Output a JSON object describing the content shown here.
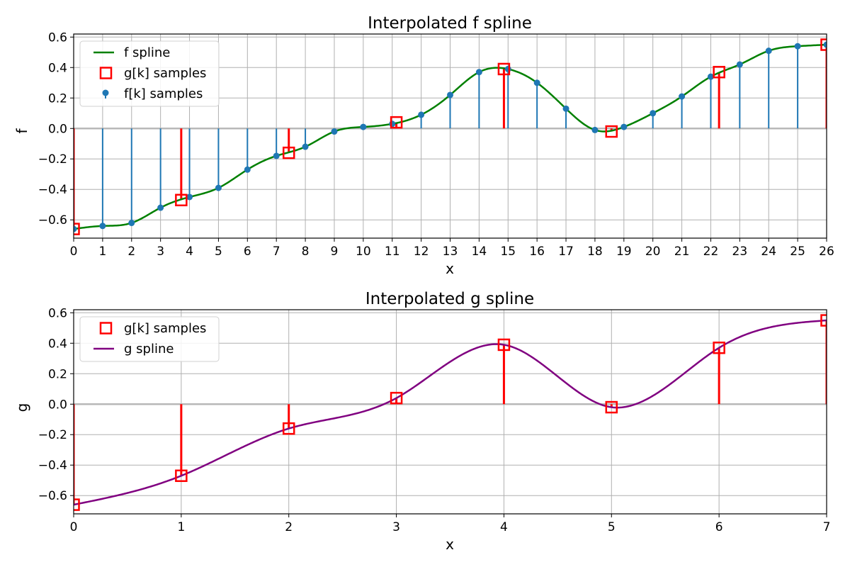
{
  "chart_data": [
    {
      "type": "line",
      "title": "Interpolated f spline",
      "xlabel": "x",
      "ylabel": "f",
      "xlim": [
        0,
        26
      ],
      "ylim": [
        -0.72,
        0.62
      ],
      "xticks": [
        "0",
        "1",
        "2",
        "3",
        "4",
        "5",
        "6",
        "7",
        "8",
        "9",
        "10",
        "11",
        "12",
        "13",
        "14",
        "15",
        "16",
        "17",
        "18",
        "19",
        "20",
        "21",
        "22",
        "23",
        "24",
        "25",
        "26"
      ],
      "yticks": [
        "−0.6",
        "−0.4",
        "−0.2",
        "0.0",
        "0.2",
        "0.4",
        "0.6"
      ],
      "ytick_values": [
        -0.6,
        -0.4,
        -0.2,
        0.0,
        0.2,
        0.4,
        0.6
      ],
      "grid": true,
      "legend_position": "upper left",
      "legend": [
        "f spline",
        "g[k] samples",
        "f[k] samples"
      ],
      "series": [
        {
          "name": "f spline",
          "kind": "line",
          "color": "#008000",
          "x": [
            0,
            1,
            2,
            3,
            4,
            5,
            6,
            7,
            8,
            9,
            10,
            11,
            12,
            13,
            14,
            15,
            16,
            17,
            18,
            19,
            20,
            21,
            22,
            23,
            24,
            25,
            26
          ],
          "values": [
            -0.66,
            -0.64,
            -0.62,
            -0.52,
            -0.45,
            -0.39,
            -0.27,
            -0.18,
            -0.12,
            -0.02,
            0.01,
            0.03,
            0.09,
            0.22,
            0.37,
            0.39,
            0.3,
            0.13,
            -0.01,
            0.01,
            0.1,
            0.21,
            0.34,
            0.42,
            0.51,
            0.54,
            0.55
          ]
        },
        {
          "name": "g[k] samples",
          "kind": "stem-square",
          "color": "#ff0000",
          "x": [
            0,
            3.714,
            7.429,
            11.143,
            14.857,
            18.571,
            22.286,
            26
          ],
          "values": [
            -0.66,
            -0.47,
            -0.16,
            0.04,
            0.39,
            -0.02,
            0.37,
            0.55
          ]
        },
        {
          "name": "f[k] samples",
          "kind": "stem-dot",
          "color": "#1f77b4",
          "x": [
            0,
            1,
            2,
            3,
            4,
            5,
            6,
            7,
            8,
            9,
            10,
            11,
            12,
            13,
            14,
            15,
            16,
            17,
            18,
            19,
            20,
            21,
            22,
            23,
            24,
            25,
            26
          ],
          "values": [
            -0.66,
            -0.64,
            -0.62,
            -0.52,
            -0.45,
            -0.39,
            -0.27,
            -0.18,
            -0.12,
            -0.02,
            0.01,
            0.03,
            0.09,
            0.22,
            0.37,
            0.39,
            0.3,
            0.13,
            -0.01,
            0.01,
            0.1,
            0.21,
            0.34,
            0.42,
            0.51,
            0.54,
            0.55
          ]
        }
      ]
    },
    {
      "type": "line",
      "title": "Interpolated g spline",
      "xlabel": "x",
      "ylabel": "g",
      "xlim": [
        0,
        7
      ],
      "ylim": [
        -0.72,
        0.62
      ],
      "xticks": [
        "0",
        "1",
        "2",
        "3",
        "4",
        "5",
        "6",
        "7"
      ],
      "yticks": [
        "−0.6",
        "−0.4",
        "−0.2",
        "0.0",
        "0.2",
        "0.4",
        "0.6"
      ],
      "ytick_values": [
        -0.6,
        -0.4,
        -0.2,
        0.0,
        0.2,
        0.4,
        0.6
      ],
      "grid": true,
      "legend_position": "upper left",
      "legend": [
        "g[k] samples",
        "g spline"
      ],
      "series": [
        {
          "name": "g[k] samples",
          "kind": "stem-square",
          "color": "#ff0000",
          "x": [
            0,
            1,
            2,
            3,
            4,
            5,
            6,
            7
          ],
          "values": [
            -0.66,
            -0.47,
            -0.16,
            0.04,
            0.39,
            -0.02,
            0.37,
            0.55
          ]
        },
        {
          "name": "g spline",
          "kind": "line",
          "color": "#800080",
          "x": [
            0,
            1,
            2,
            3,
            4,
            5,
            6,
            7
          ],
          "values": [
            -0.66,
            -0.47,
            -0.16,
            0.04,
            0.39,
            -0.02,
            0.37,
            0.55
          ]
        }
      ]
    }
  ]
}
